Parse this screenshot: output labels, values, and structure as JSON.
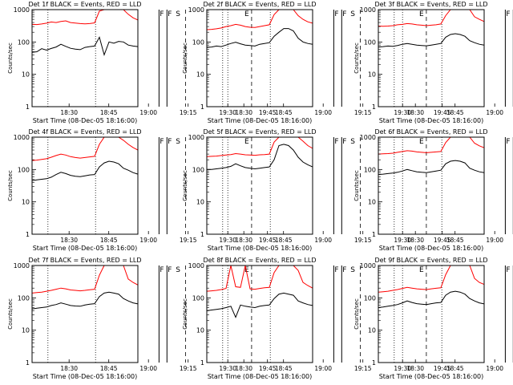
{
  "chart_data": {
    "type": "line",
    "yscale": "log",
    "ylim": [
      1,
      1000
    ],
    "ylabel": "Counts/sec",
    "xlabel": "Start Time (08-Dec-05 18:16:00)",
    "xlim": [
      "18:16",
      "18:56"
    ],
    "xticks": [
      "18:30",
      "18:45",
      "19:00",
      "19:15",
      "19:30",
      "19:45"
    ],
    "yticks": [
      "1",
      "10",
      "100",
      "1000"
    ],
    "series_colors": {
      "events": "#000000",
      "lld": "#ff0000"
    },
    "markers": [
      {
        "label": "F",
        "time": "19:04"
      },
      {
        "label": "F",
        "time": "19:07"
      },
      {
        "label": "S",
        "time": "19:10"
      },
      {
        "label": "E",
        "time": "19:36"
      }
    ],
    "dotted_lines": [
      "18:22",
      "18:40",
      "19:30"
    ],
    "dashed_lines": [
      "19:14",
      "19:39"
    ],
    "panels": [
      {
        "title": "Det 1f BLACK = Events, RED = LLD",
        "events": [
          48,
          50,
          62,
          56,
          63,
          70,
          85,
          73,
          64,
          60,
          58,
          68,
          72,
          75,
          140,
          40,
          100,
          92,
          104,
          100,
          80,
          75,
          72
        ],
        "lld": [
          350,
          345,
          360,
          380,
          415,
          400,
          430,
          450,
          400,
          385,
          370,
          365,
          370,
          390,
          900,
          1000,
          1000,
          1000,
          1000,
          1000,
          720,
          560,
          480
        ]
      },
      {
        "title": "Det 2f BLACK = Events, RED = LLD",
        "events": [
          68,
          70,
          75,
          72,
          80,
          90,
          98,
          88,
          80,
          78,
          75,
          85,
          90,
          95,
          150,
          200,
          260,
          260,
          220,
          130,
          100,
          90,
          85
        ],
        "lld": [
          240,
          245,
          255,
          270,
          300,
          320,
          350,
          330,
          300,
          285,
          280,
          300,
          320,
          340,
          700,
          1000,
          1000,
          1000,
          1000,
          650,
          500,
          420,
          380
        ]
      },
      {
        "title": "Det 3f BLACK = Events, RED = LLD",
        "events": [
          70,
          72,
          75,
          73,
          78,
          85,
          90,
          85,
          80,
          78,
          76,
          80,
          85,
          90,
          140,
          170,
          180,
          170,
          150,
          110,
          95,
          85,
          80
        ],
        "lld": [
          310,
          305,
          310,
          320,
          340,
          350,
          370,
          360,
          340,
          330,
          320,
          330,
          340,
          360,
          650,
          1000,
          1000,
          1000,
          1000,
          1000,
          600,
          500,
          430
        ]
      },
      {
        "title": "Det 4f BLACK = Events, RED = LLD",
        "events": [
          45,
          48,
          50,
          52,
          58,
          70,
          82,
          75,
          66,
          62,
          60,
          64,
          68,
          70,
          120,
          160,
          180,
          170,
          150,
          110,
          95,
          80,
          72
        ],
        "lld": [
          190,
          195,
          205,
          215,
          240,
          270,
          300,
          280,
          250,
          235,
          225,
          235,
          245,
          255,
          600,
          1000,
          1000,
          1000,
          1000,
          800,
          600,
          480,
          400
        ]
      },
      {
        "title": "Det 5f BLACK = Events, RED = LLD",
        "events": [
          100,
          100,
          105,
          110,
          115,
          125,
          150,
          130,
          115,
          110,
          105,
          110,
          115,
          120,
          200,
          550,
          600,
          550,
          400,
          240,
          170,
          140,
          120
        ],
        "lld": [
          250,
          255,
          260,
          270,
          280,
          290,
          310,
          300,
          285,
          280,
          275,
          285,
          290,
          300,
          700,
          1000,
          1000,
          1000,
          1000,
          1000,
          750,
          550,
          450
        ]
      },
      {
        "title": "Det 6f BLACK = Events, RED = LLD",
        "events": [
          70,
          72,
          75,
          78,
          82,
          90,
          100,
          92,
          85,
          82,
          80,
          85,
          90,
          95,
          150,
          180,
          190,
          180,
          160,
          110,
          95,
          85,
          80
        ],
        "lld": [
          300,
          305,
          310,
          320,
          340,
          360,
          380,
          370,
          350,
          340,
          330,
          340,
          350,
          360,
          680,
          1000,
          1000,
          1000,
          1000,
          1000,
          650,
          540,
          470
        ]
      },
      {
        "title": "Det 7f BLACK = Events, RED = LLD",
        "events": [
          45,
          48,
          50,
          52,
          58,
          62,
          70,
          64,
          58,
          56,
          55,
          60,
          64,
          66,
          110,
          140,
          150,
          140,
          130,
          95,
          80,
          70,
          65
        ],
        "lld": [
          140,
          145,
          150,
          160,
          170,
          185,
          200,
          190,
          175,
          170,
          165,
          170,
          178,
          185,
          500,
          1000,
          1000,
          1000,
          1000,
          1000,
          380,
          300,
          250
        ]
      },
      {
        "title": "Det 8f BLACK = Events, RED = LLD",
        "events": [
          40,
          42,
          44,
          46,
          50,
          55,
          25,
          60,
          55,
          52,
          50,
          55,
          58,
          60,
          95,
          130,
          140,
          130,
          120,
          80,
          70,
          62,
          58
        ],
        "lld": [
          160,
          165,
          170,
          180,
          195,
          1000,
          220,
          210,
          1000,
          190,
          185,
          195,
          205,
          210,
          600,
          1000,
          1000,
          1000,
          1000,
          700,
          300,
          240,
          200
        ]
      },
      {
        "title": "Det 9f BLACK = Events, RED = LLD",
        "events": [
          50,
          52,
          55,
          58,
          62,
          70,
          80,
          72,
          66,
          64,
          62,
          66,
          70,
          72,
          120,
          150,
          160,
          150,
          130,
          95,
          80,
          70,
          65
        ],
        "lld": [
          150,
          155,
          160,
          170,
          180,
          195,
          210,
          200,
          190,
          185,
          180,
          190,
          198,
          205,
          520,
          1000,
          1000,
          1000,
          1000,
          1000,
          400,
          300,
          260
        ]
      }
    ]
  }
}
